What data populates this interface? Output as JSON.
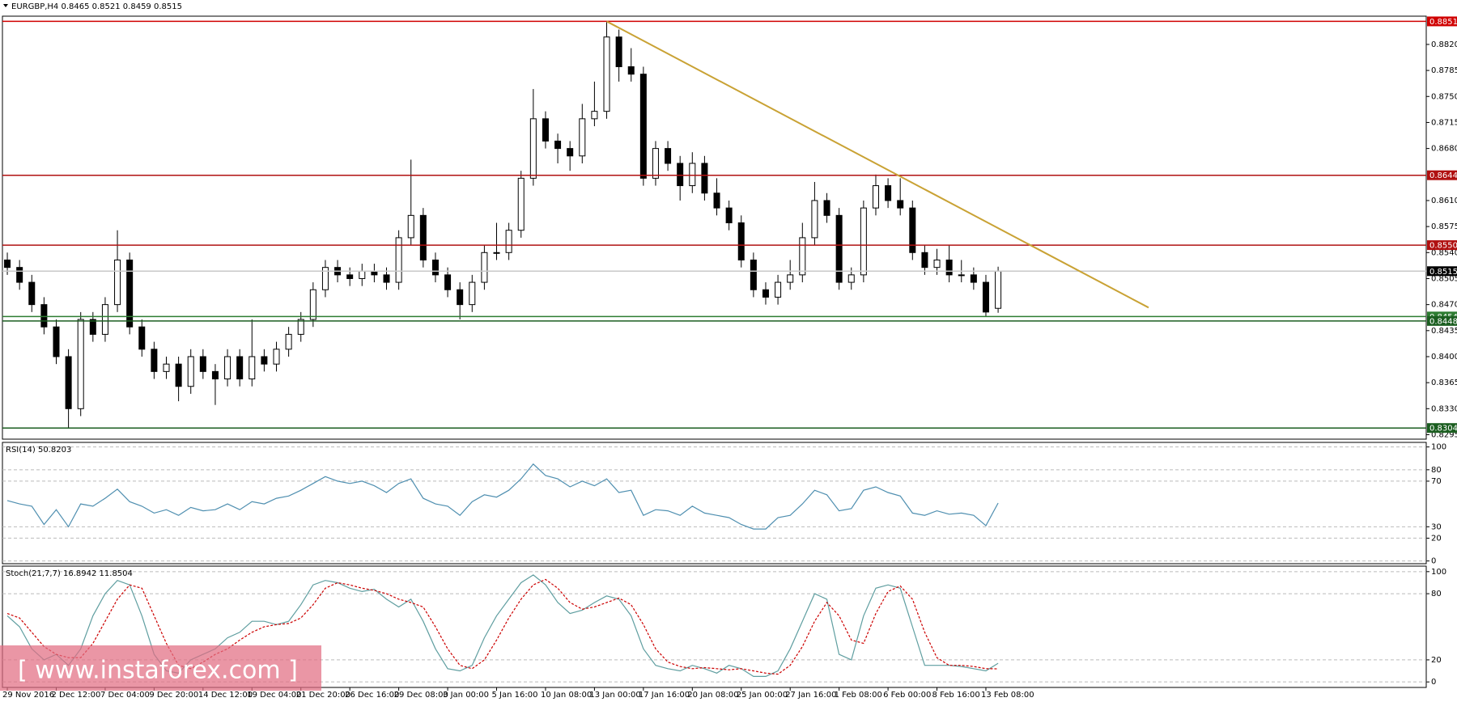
{
  "chart_data": [
    {
      "type": "candlestick",
      "title": "EURGBP,H4  0.8465 0.8521 0.8459 0.8515",
      "categories": [
        "29 Nov 2016",
        null,
        null,
        null,
        "2 Dec 12:00",
        null,
        null,
        null,
        "7 Dec 04:00",
        null,
        null,
        null,
        "9 Dec 20:00",
        null,
        null,
        null,
        "14 Dec 12:00",
        null,
        null,
        null,
        "19 Dec 04:00",
        null,
        null,
        null,
        "21 Dec 20:00",
        null,
        null,
        null,
        "26 Dec 16:00",
        null,
        null,
        null,
        "29 Dec 08:00",
        null,
        null,
        null,
        "3 Jan 00:00",
        null,
        null,
        null,
        "5 Jan 16:00",
        null,
        null,
        null,
        "10 Jan 08:00",
        null,
        null,
        null,
        "13 Jan 00:00",
        null,
        null,
        null,
        "17 Jan 16:00",
        null,
        null,
        null,
        "20 Jan 08:00",
        null,
        null,
        null,
        "25 Jan 00:00",
        null,
        null,
        null,
        "27 Jan 16:00",
        null,
        null,
        null,
        "1 Feb 08:00",
        null,
        null,
        null,
        "6 Feb 00:00",
        null,
        null,
        null,
        "8 Feb 16:00",
        null,
        null,
        null,
        "13 Feb 08:00",
        null
      ],
      "open": [
        0.853,
        0.852,
        0.85,
        0.847,
        0.844,
        0.84,
        0.833,
        0.845,
        0.843,
        0.847,
        0.853,
        0.844,
        0.841,
        0.838,
        0.839,
        0.836,
        0.84,
        0.838,
        0.837,
        0.84,
        0.837,
        0.84,
        0.839,
        0.841,
        0.843,
        0.845,
        0.849,
        0.852,
        0.851,
        0.8505,
        0.8515,
        0.851,
        0.85,
        0.856,
        0.859,
        0.853,
        0.851,
        0.849,
        0.847,
        0.85,
        0.854,
        0.854,
        0.857,
        0.864,
        0.872,
        0.869,
        0.868,
        0.867,
        0.872,
        0.873,
        0.883,
        0.879,
        0.878,
        0.864,
        0.868,
        0.866,
        0.863,
        0.866,
        0.862,
        0.86,
        0.858,
        0.853,
        0.849,
        0.848,
        0.85,
        0.851,
        0.856,
        0.861,
        0.859,
        0.85,
        0.851,
        0.86,
        0.863,
        0.861,
        0.86,
        0.854,
        0.852,
        0.853,
        0.851,
        0.851,
        0.85,
        0.8465
      ],
      "high": [
        0.854,
        0.853,
        0.851,
        0.848,
        0.845,
        0.841,
        0.846,
        0.846,
        0.848,
        0.857,
        0.854,
        0.845,
        0.842,
        0.84,
        0.84,
        0.841,
        0.841,
        0.839,
        0.841,
        0.841,
        0.845,
        0.841,
        0.842,
        0.844,
        0.846,
        0.85,
        0.853,
        0.853,
        0.852,
        0.8525,
        0.8525,
        0.852,
        0.857,
        0.8665,
        0.86,
        0.854,
        0.852,
        0.85,
        0.851,
        0.855,
        0.858,
        0.858,
        0.865,
        0.876,
        0.873,
        0.87,
        0.869,
        0.874,
        0.877,
        0.8851,
        0.884,
        0.8815,
        0.879,
        0.869,
        0.869,
        0.867,
        0.8675,
        0.867,
        0.864,
        0.861,
        0.859,
        0.854,
        0.85,
        0.851,
        0.853,
        0.858,
        0.8635,
        0.862,
        0.86,
        0.852,
        0.861,
        0.8645,
        0.864,
        0.864,
        0.861,
        0.855,
        0.8545,
        0.855,
        0.853,
        0.852,
        0.851,
        0.8521
      ],
      "low": [
        0.851,
        0.849,
        0.846,
        0.843,
        0.839,
        0.8304,
        0.832,
        0.842,
        0.842,
        0.846,
        0.843,
        0.84,
        0.837,
        0.837,
        0.834,
        0.835,
        0.837,
        0.8335,
        0.836,
        0.836,
        0.836,
        0.838,
        0.838,
        0.84,
        0.842,
        0.844,
        0.848,
        0.85,
        0.8495,
        0.8495,
        0.85,
        0.849,
        0.849,
        0.855,
        0.852,
        0.85,
        0.848,
        0.845,
        0.846,
        0.849,
        0.853,
        0.853,
        0.856,
        0.863,
        0.868,
        0.866,
        0.865,
        0.866,
        0.871,
        0.872,
        0.877,
        0.877,
        0.863,
        0.863,
        0.865,
        0.861,
        0.862,
        0.861,
        0.859,
        0.857,
        0.852,
        0.848,
        0.847,
        0.847,
        0.849,
        0.85,
        0.855,
        0.858,
        0.849,
        0.849,
        0.85,
        0.859,
        0.86,
        0.859,
        0.853,
        0.851,
        0.851,
        0.85,
        0.85,
        0.849,
        0.8454,
        0.8459
      ],
      "close": [
        0.852,
        0.85,
        0.847,
        0.844,
        0.84,
        0.833,
        0.845,
        0.843,
        0.847,
        0.853,
        0.844,
        0.841,
        0.838,
        0.839,
        0.836,
        0.84,
        0.838,
        0.837,
        0.84,
        0.837,
        0.84,
        0.839,
        0.841,
        0.843,
        0.845,
        0.849,
        0.852,
        0.851,
        0.8505,
        0.8515,
        0.851,
        0.85,
        0.856,
        0.859,
        0.853,
        0.851,
        0.849,
        0.847,
        0.85,
        0.854,
        0.854,
        0.857,
        0.864,
        0.872,
        0.869,
        0.868,
        0.867,
        0.872,
        0.873,
        0.883,
        0.879,
        0.878,
        0.864,
        0.868,
        0.866,
        0.863,
        0.866,
        0.862,
        0.86,
        0.858,
        0.853,
        0.849,
        0.848,
        0.85,
        0.851,
        0.856,
        0.861,
        0.859,
        0.85,
        0.851,
        0.86,
        0.863,
        0.861,
        0.86,
        0.854,
        0.852,
        0.853,
        0.851,
        0.851,
        0.85,
        0.846,
        0.8515
      ],
      "up_color": "#ffffff",
      "down_color": "#000000",
      "wick_color": "#000000",
      "xlim": [
        -0.4,
        116
      ],
      "ylim": [
        0.8289,
        0.8858
      ],
      "yticks": [
        {
          "value": 0.882,
          "label": "0.8820"
        },
        0.8785,
        {
          "value": 0.875,
          "label": "0.8750"
        },
        0.8715,
        {
          "value": 0.868,
          "label": "0.8680"
        },
        {
          "value": 0.861,
          "label": "0.8610"
        },
        0.8575,
        {
          "value": 0.854,
          "label": "0.8540"
        },
        0.8505,
        {
          "value": 0.847,
          "label": "0.8470"
        },
        0.8435,
        {
          "value": 0.84,
          "label": "0.8400"
        },
        0.8365,
        {
          "value": 0.833,
          "label": "0.8330"
        },
        0.8295
      ],
      "levels": [
        {
          "value": 0.8851,
          "label": "0.8851",
          "color": "#d00000"
        },
        {
          "value": 0.8644,
          "label": "0.8644",
          "color": "#b01010"
        },
        {
          "value": 0.855,
          "label": "0.8550",
          "color": "#b01010"
        },
        {
          "value": 0.8515,
          "label": "0.8515",
          "color": "#c8c8c8",
          "box": "#000000"
        },
        {
          "value": 0.8454,
          "label": "0.8454",
          "color": "#2e7d32"
        },
        {
          "value": 0.8448,
          "label": "0.8448",
          "color": "#1b5e20"
        },
        {
          "value": 0.8304,
          "label": "0.8304",
          "color": "#1b5e20"
        }
      ],
      "trendline": {
        "x": [
          49,
          93.3
        ],
        "y": [
          0.8851,
          0.8466
        ],
        "color": "#c9a234"
      }
    },
    {
      "type": "line",
      "title": "RSI(14) 50.8203",
      "color": "#4f8fb0",
      "values": [
        53,
        50,
        48,
        32,
        45,
        30,
        50,
        48,
        55,
        63,
        52,
        48,
        42,
        45,
        40,
        47,
        44,
        45,
        50,
        45,
        52,
        50,
        55,
        57,
        62,
        68,
        74,
        70,
        68,
        70,
        66,
        60,
        68,
        72,
        55,
        50,
        48,
        40,
        52,
        58,
        56,
        62,
        72,
        85,
        75,
        72,
        65,
        70,
        66,
        72,
        60,
        62,
        40,
        45,
        44,
        40,
        48,
        42,
        40,
        38,
        32,
        28,
        28,
        38,
        40,
        50,
        62,
        58,
        44,
        46,
        62,
        65,
        60,
        57,
        42,
        40,
        44,
        41,
        42,
        40,
        31,
        50.8203
      ],
      "ylim": [
        -2.4,
        104
      ],
      "yticks": [
        0,
        20,
        30,
        70,
        80,
        100
      ]
    },
    {
      "type": "line",
      "title": "Stoch(21,7,7) 16.8942 11.8504",
      "series": [
        {
          "color": "#5f9ea0",
          "values": [
            60,
            50,
            30,
            20,
            25,
            15,
            30,
            60,
            80,
            92,
            88,
            60,
            25,
            10,
            8,
            20,
            25,
            30,
            40,
            45,
            55,
            55,
            52,
            55,
            70,
            88,
            92,
            90,
            85,
            82,
            84,
            75,
            68,
            75,
            55,
            30,
            12,
            10,
            15,
            40,
            60,
            75,
            90,
            97,
            88,
            72,
            62,
            65,
            72,
            78,
            75,
            60,
            30,
            15,
            12,
            10,
            15,
            12,
            8,
            15,
            12,
            5,
            5,
            10,
            30,
            55,
            80,
            75,
            25,
            20,
            60,
            85,
            88,
            85,
            50,
            15,
            15,
            15,
            14,
            12,
            10,
            16.8942
          ]
        },
        {
          "color": "#cc0000",
          "dash": "3,2",
          "values": [
            62,
            58,
            45,
            32,
            25,
            22,
            22,
            35,
            55,
            75,
            88,
            85,
            60,
            35,
            15,
            12,
            18,
            25,
            30,
            38,
            45,
            50,
            52,
            53,
            58,
            70,
            85,
            90,
            88,
            85,
            83,
            80,
            75,
            72,
            68,
            50,
            30,
            15,
            12,
            20,
            38,
            58,
            75,
            88,
            93,
            85,
            72,
            66,
            68,
            72,
            76,
            70,
            52,
            30,
            18,
            14,
            12,
            13,
            12,
            11,
            12,
            10,
            8,
            7,
            15,
            32,
            55,
            72,
            60,
            38,
            35,
            62,
            82,
            87,
            75,
            45,
            22,
            15,
            15,
            14,
            12,
            11.8504
          ]
        }
      ],
      "ylim": [
        -5,
        105
      ],
      "yticks": [
        0,
        20,
        80,
        100
      ]
    }
  ],
  "watermark": "[ www.instaforex.com ]"
}
